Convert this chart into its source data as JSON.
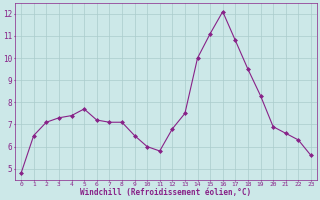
{
  "x": [
    0,
    1,
    2,
    3,
    4,
    5,
    6,
    7,
    8,
    9,
    10,
    11,
    12,
    13,
    14,
    15,
    16,
    17,
    18,
    19,
    20,
    21,
    22,
    23
  ],
  "y": [
    4.8,
    6.5,
    7.1,
    7.3,
    7.4,
    7.7,
    7.2,
    7.1,
    7.1,
    6.5,
    6.0,
    5.8,
    6.8,
    7.5,
    10.0,
    11.1,
    12.1,
    10.8,
    9.5,
    8.3,
    6.9,
    6.6,
    6.3,
    5.6
  ],
  "line_color": "#882288",
  "marker": "D",
  "marker_size": 2,
  "bg_color": "#cce8e8",
  "grid_color": "#aacccc",
  "xlabel": "Windchill (Refroidissement éolien,°C)",
  "tick_color": "#882288",
  "ylim": [
    4.5,
    12.5
  ],
  "xlim": [
    -0.5,
    23.5
  ],
  "yticks": [
    5,
    6,
    7,
    8,
    9,
    10,
    11,
    12
  ],
  "xticks": [
    0,
    1,
    2,
    3,
    4,
    5,
    6,
    7,
    8,
    9,
    10,
    11,
    12,
    13,
    14,
    15,
    16,
    17,
    18,
    19,
    20,
    21,
    22,
    23
  ],
  "xlabel_fontsize": 5.5,
  "tick_fontsize_x": 4.5,
  "tick_fontsize_y": 5.5
}
